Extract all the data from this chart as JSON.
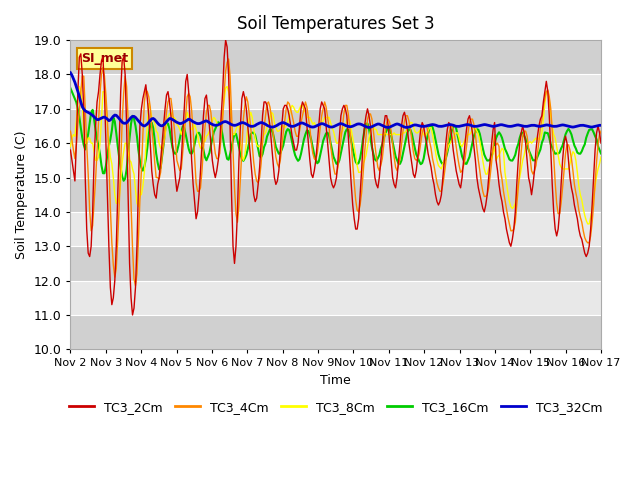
{
  "title": "Soil Temperatures Set 3",
  "xlabel": "Time",
  "ylabel": "Soil Temperature (C)",
  "ylim": [
    10.0,
    19.0
  ],
  "yticks": [
    10.0,
    11.0,
    12.0,
    13.0,
    14.0,
    15.0,
    16.0,
    17.0,
    18.0,
    19.0
  ],
  "xtick_labels": [
    "Nov 2",
    "Nov 3",
    "Nov 4",
    "Nov 5",
    "Nov 6",
    "Nov 7",
    "Nov 8",
    "Nov 9",
    "Nov 10",
    "Nov 11",
    "Nov 12",
    "Nov 13",
    "Nov 14",
    "Nov 15",
    "Nov 16",
    "Nov 17"
  ],
  "legend_labels": [
    "TC3_2Cm",
    "TC3_4Cm",
    "TC3_8Cm",
    "TC3_16Cm",
    "TC3_32Cm"
  ],
  "line_colors": [
    "#cc0000",
    "#ff8800",
    "#ffff00",
    "#00cc00",
    "#0000cc"
  ],
  "annotation_text": "SI_met",
  "annotation_bg": "#ffff99",
  "annotation_border": "#cc8800",
  "background_color": "#ffffff",
  "plot_bg_color": "#e8e8e8",
  "band_color": "#d0d0d0",
  "grid_color": "#ffffff",
  "n_points": 360,
  "TC3_2Cm": [
    15.8,
    15.5,
    15.2,
    14.9,
    16.0,
    17.5,
    18.5,
    18.6,
    18.0,
    17.0,
    15.0,
    13.5,
    12.8,
    12.7,
    13.0,
    14.0,
    15.5,
    16.5,
    17.2,
    17.5,
    18.0,
    18.4,
    18.5,
    17.5,
    16.0,
    14.5,
    13.0,
    11.8,
    11.3,
    11.5,
    12.0,
    13.0,
    14.5,
    16.0,
    17.5,
    18.4,
    18.5,
    18.0,
    16.5,
    14.5,
    12.5,
    11.5,
    11.0,
    11.2,
    11.8,
    13.0,
    14.8,
    16.5,
    17.0,
    17.3,
    17.5,
    17.7,
    17.3,
    16.8,
    16.0,
    15.2,
    14.8,
    14.5,
    14.4,
    14.8,
    15.0,
    15.5,
    16.0,
    16.5,
    17.0,
    17.4,
    17.5,
    17.2,
    16.8,
    16.0,
    15.5,
    15.0,
    14.6,
    14.8,
    15.0,
    15.5,
    16.3,
    17.0,
    17.8,
    18.0,
    17.5,
    16.5,
    15.5,
    14.8,
    14.3,
    13.8,
    14.0,
    14.5,
    15.2,
    16.0,
    16.8,
    17.3,
    17.4,
    17.0,
    16.5,
    16.0,
    15.5,
    15.2,
    15.0,
    15.2,
    15.5,
    16.0,
    16.8,
    17.5,
    18.5,
    19.0,
    18.8,
    18.0,
    16.5,
    14.5,
    13.0,
    12.5,
    13.0,
    14.0,
    15.5,
    16.5,
    17.3,
    17.5,
    17.3,
    17.0,
    16.5,
    16.0,
    15.5,
    15.0,
    14.5,
    14.3,
    14.4,
    14.8,
    15.3,
    16.0,
    16.8,
    17.2,
    17.2,
    17.1,
    16.8,
    16.5,
    16.0,
    15.5,
    15.0,
    14.8,
    14.9,
    15.2,
    15.8,
    16.5,
    17.0,
    17.1,
    17.1,
    17.0,
    16.8,
    16.5,
    16.2,
    16.0,
    15.8,
    15.8,
    16.0,
    16.5,
    17.0,
    17.2,
    17.1,
    17.0,
    16.5,
    16.0,
    15.5,
    15.1,
    15.0,
    15.2,
    15.5,
    16.0,
    16.5,
    17.0,
    17.2,
    17.1,
    17.0,
    16.5,
    16.0,
    15.5,
    15.0,
    14.8,
    14.7,
    14.8,
    15.0,
    15.5,
    16.2,
    16.8,
    17.0,
    17.1,
    17.0,
    16.8,
    16.2,
    15.5,
    14.8,
    14.2,
    13.8,
    13.5,
    13.5,
    13.8,
    14.5,
    15.2,
    16.0,
    16.5,
    16.8,
    17.0,
    16.8,
    16.5,
    16.0,
    15.5,
    15.0,
    14.8,
    14.7,
    15.0,
    15.5,
    16.0,
    16.5,
    16.8,
    16.8,
    16.5,
    16.0,
    15.5,
    15.0,
    14.8,
    14.7,
    15.0,
    15.5,
    16.0,
    16.5,
    16.8,
    16.9,
    16.7,
    16.4,
    16.0,
    15.7,
    15.4,
    15.1,
    15.0,
    15.2,
    15.6,
    16.0,
    16.4,
    16.6,
    16.5,
    16.2,
    16.0,
    15.7,
    15.5,
    15.3,
    15.0,
    14.8,
    14.5,
    14.3,
    14.2,
    14.3,
    14.5,
    15.0,
    15.5,
    16.0,
    16.4,
    16.6,
    16.5,
    16.2,
    15.8,
    15.5,
    15.2,
    15.0,
    14.8,
    14.7,
    15.0,
    15.5,
    16.0,
    16.4,
    16.7,
    16.8,
    16.6,
    16.3,
    15.9,
    15.5,
    15.0,
    14.7,
    14.5,
    14.3,
    14.1,
    14.0,
    14.2,
    14.5,
    15.0,
    15.5,
    16.0,
    16.4,
    16.6,
    15.5,
    15.2,
    14.8,
    14.5,
    14.3,
    14.0,
    13.8,
    13.5,
    13.3,
    13.1,
    13.0,
    13.2,
    13.5,
    14.0,
    14.8,
    15.5,
    16.0,
    16.3,
    16.5,
    16.3,
    16.0,
    15.5,
    15.0,
    14.8,
    14.5,
    14.8,
    15.2,
    15.8,
    16.2,
    16.5,
    16.7,
    16.8,
    17.2,
    17.5,
    17.8,
    17.5,
    16.8,
    15.8,
    14.8,
    14.0,
    13.5,
    13.3,
    13.5,
    14.0,
    14.8,
    15.5,
    16.0,
    16.2,
    16.0,
    15.5,
    15.0,
    14.7,
    14.5,
    14.2,
    14.0,
    13.8,
    13.5,
    13.3,
    13.2,
    13.0,
    12.8,
    12.7,
    12.8,
    13.0,
    13.5,
    14.2,
    15.0,
    15.8,
    16.3,
    16.5,
    16.3,
    16.0
  ]
}
